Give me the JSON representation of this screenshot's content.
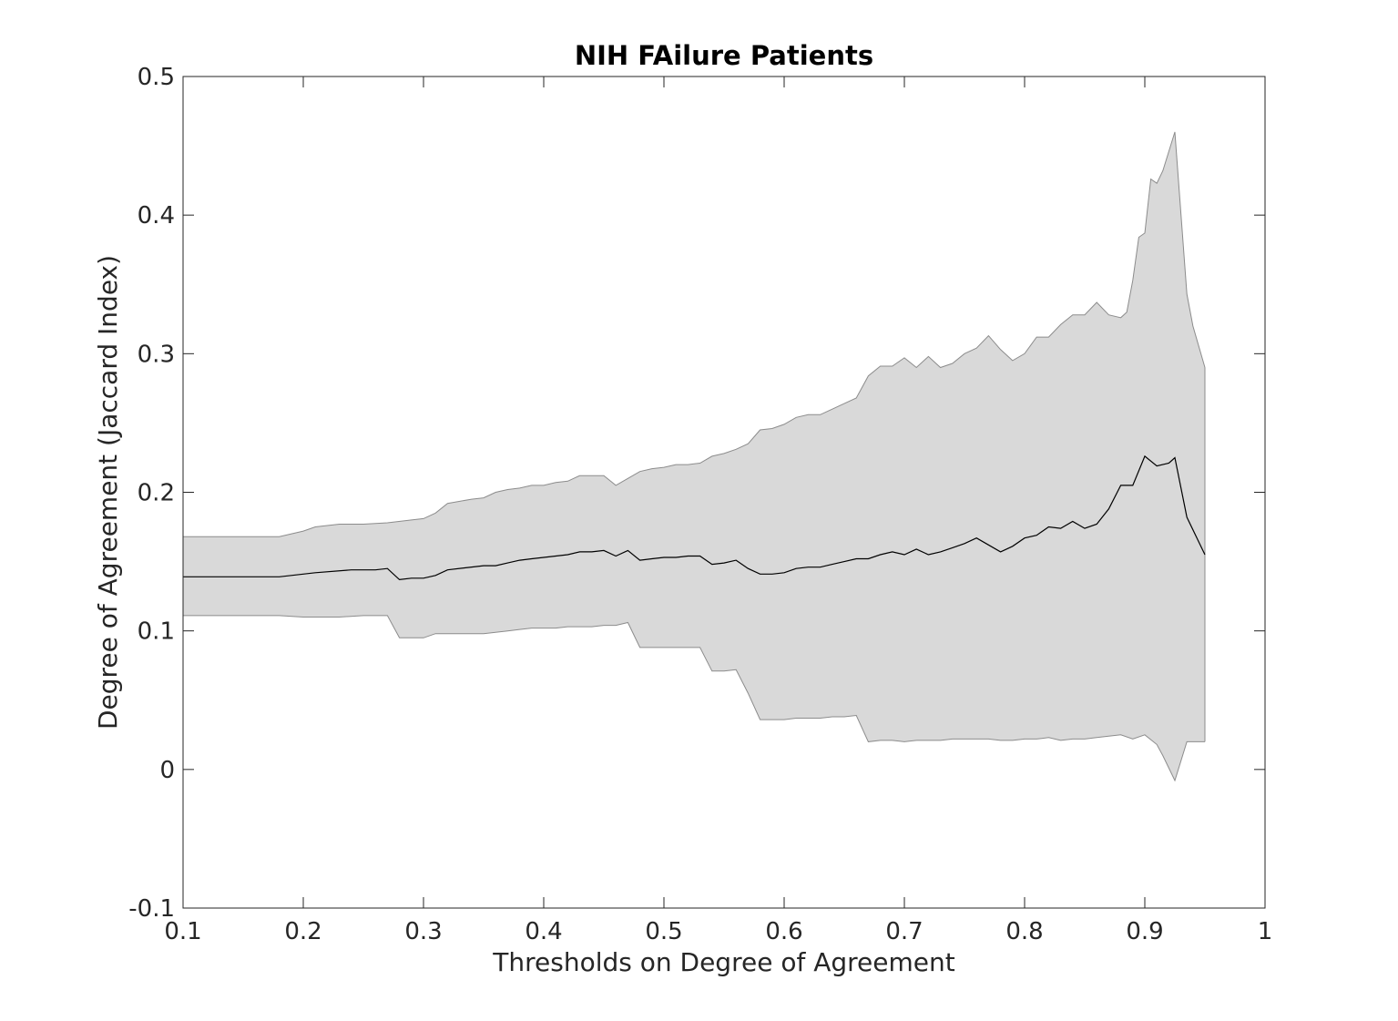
{
  "chart_data": {
    "type": "area",
    "title": "NIH FAilure Patients",
    "xlabel": "Thresholds on Degree of Agreement",
    "ylabel": "Degree of Agreement (Jaccard Index)",
    "xlim": [
      0.1,
      1
    ],
    "ylim": [
      -0.1,
      0.5
    ],
    "x_ticks": [
      "0.1",
      "0.2",
      "0.3",
      "0.4",
      "0.5",
      "0.6",
      "0.7",
      "0.8",
      "0.9",
      "1"
    ],
    "y_ticks": [
      "-0.1",
      "0",
      "0.1",
      "0.2",
      "0.3",
      "0.4",
      "0.5"
    ],
    "grid": false,
    "legend": "none",
    "colors": {
      "band_fill": "#d9d9d9",
      "band_edge": "#8c8c8c",
      "mean_line": "#000000"
    },
    "series": [
      {
        "role": "mean",
        "points": [
          [
            0.1,
            0.139
          ],
          [
            0.18,
            0.139
          ],
          [
            0.2,
            0.141
          ],
          [
            0.21,
            0.142
          ],
          [
            0.24,
            0.144
          ],
          [
            0.26,
            0.144
          ],
          [
            0.27,
            0.145
          ],
          [
            0.28,
            0.137
          ],
          [
            0.29,
            0.138
          ],
          [
            0.3,
            0.138
          ],
          [
            0.31,
            0.14
          ],
          [
            0.32,
            0.144
          ],
          [
            0.35,
            0.147
          ],
          [
            0.36,
            0.147
          ],
          [
            0.37,
            0.149
          ],
          [
            0.38,
            0.151
          ],
          [
            0.39,
            0.152
          ],
          [
            0.4,
            0.153
          ],
          [
            0.41,
            0.154
          ],
          [
            0.42,
            0.155
          ],
          [
            0.43,
            0.157
          ],
          [
            0.44,
            0.157
          ],
          [
            0.45,
            0.158
          ],
          [
            0.46,
            0.154
          ],
          [
            0.47,
            0.158
          ],
          [
            0.48,
            0.151
          ],
          [
            0.49,
            0.152
          ],
          [
            0.5,
            0.153
          ],
          [
            0.51,
            0.153
          ],
          [
            0.52,
            0.154
          ],
          [
            0.53,
            0.154
          ],
          [
            0.54,
            0.148
          ],
          [
            0.55,
            0.149
          ],
          [
            0.56,
            0.151
          ],
          [
            0.57,
            0.145
          ],
          [
            0.58,
            0.141
          ],
          [
            0.59,
            0.141
          ],
          [
            0.6,
            0.142
          ],
          [
            0.61,
            0.145
          ],
          [
            0.62,
            0.146
          ],
          [
            0.63,
            0.146
          ],
          [
            0.64,
            0.148
          ],
          [
            0.65,
            0.15
          ],
          [
            0.66,
            0.152
          ],
          [
            0.67,
            0.152
          ],
          [
            0.68,
            0.155
          ],
          [
            0.69,
            0.157
          ],
          [
            0.7,
            0.155
          ],
          [
            0.71,
            0.159
          ],
          [
            0.72,
            0.155
          ],
          [
            0.73,
            0.157
          ],
          [
            0.74,
            0.16
          ],
          [
            0.75,
            0.163
          ],
          [
            0.76,
            0.167
          ],
          [
            0.77,
            0.162
          ],
          [
            0.78,
            0.157
          ],
          [
            0.79,
            0.161
          ],
          [
            0.8,
            0.167
          ],
          [
            0.81,
            0.169
          ],
          [
            0.82,
            0.175
          ],
          [
            0.83,
            0.174
          ],
          [
            0.84,
            0.179
          ],
          [
            0.85,
            0.174
          ],
          [
            0.86,
            0.177
          ],
          [
            0.87,
            0.188
          ],
          [
            0.88,
            0.205
          ],
          [
            0.89,
            0.205
          ],
          [
            0.9,
            0.226
          ],
          [
            0.91,
            0.219
          ],
          [
            0.92,
            0.221
          ],
          [
            0.925,
            0.225
          ],
          [
            0.935,
            0.182
          ],
          [
            0.95,
            0.155
          ]
        ]
      },
      {
        "role": "upper",
        "points": [
          [
            0.1,
            0.168
          ],
          [
            0.18,
            0.168
          ],
          [
            0.2,
            0.172
          ],
          [
            0.21,
            0.175
          ],
          [
            0.23,
            0.177
          ],
          [
            0.25,
            0.177
          ],
          [
            0.27,
            0.178
          ],
          [
            0.29,
            0.18
          ],
          [
            0.3,
            0.181
          ],
          [
            0.31,
            0.185
          ],
          [
            0.32,
            0.192
          ],
          [
            0.34,
            0.195
          ],
          [
            0.35,
            0.196
          ],
          [
            0.36,
            0.2
          ],
          [
            0.37,
            0.202
          ],
          [
            0.38,
            0.203
          ],
          [
            0.39,
            0.205
          ],
          [
            0.4,
            0.205
          ],
          [
            0.41,
            0.207
          ],
          [
            0.42,
            0.208
          ],
          [
            0.43,
            0.212
          ],
          [
            0.44,
            0.212
          ],
          [
            0.45,
            0.212
          ],
          [
            0.46,
            0.205
          ],
          [
            0.47,
            0.21
          ],
          [
            0.48,
            0.215
          ],
          [
            0.49,
            0.217
          ],
          [
            0.5,
            0.218
          ],
          [
            0.51,
            0.22
          ],
          [
            0.52,
            0.22
          ],
          [
            0.53,
            0.221
          ],
          [
            0.54,
            0.226
          ],
          [
            0.55,
            0.228
          ],
          [
            0.56,
            0.231
          ],
          [
            0.57,
            0.235
          ],
          [
            0.58,
            0.245
          ],
          [
            0.59,
            0.246
          ],
          [
            0.6,
            0.249
          ],
          [
            0.61,
            0.254
          ],
          [
            0.62,
            0.256
          ],
          [
            0.63,
            0.256
          ],
          [
            0.64,
            0.26
          ],
          [
            0.65,
            0.264
          ],
          [
            0.66,
            0.268
          ],
          [
            0.67,
            0.284
          ],
          [
            0.68,
            0.291
          ],
          [
            0.69,
            0.291
          ],
          [
            0.7,
            0.297
          ],
          [
            0.71,
            0.29
          ],
          [
            0.72,
            0.298
          ],
          [
            0.73,
            0.29
          ],
          [
            0.74,
            0.293
          ],
          [
            0.75,
            0.3
          ],
          [
            0.76,
            0.304
          ],
          [
            0.77,
            0.313
          ],
          [
            0.78,
            0.303
          ],
          [
            0.79,
            0.295
          ],
          [
            0.8,
            0.3
          ],
          [
            0.81,
            0.312
          ],
          [
            0.82,
            0.312
          ],
          [
            0.83,
            0.321
          ],
          [
            0.84,
            0.328
          ],
          [
            0.85,
            0.328
          ],
          [
            0.86,
            0.337
          ],
          [
            0.87,
            0.328
          ],
          [
            0.88,
            0.326
          ],
          [
            0.885,
            0.33
          ],
          [
            0.89,
            0.353
          ],
          [
            0.895,
            0.384
          ],
          [
            0.9,
            0.387
          ],
          [
            0.905,
            0.426
          ],
          [
            0.91,
            0.423
          ],
          [
            0.915,
            0.432
          ],
          [
            0.925,
            0.46
          ],
          [
            0.935,
            0.343
          ],
          [
            0.94,
            0.32
          ],
          [
            0.95,
            0.29
          ]
        ]
      },
      {
        "role": "lower",
        "points": [
          [
            0.1,
            0.111
          ],
          [
            0.18,
            0.111
          ],
          [
            0.2,
            0.11
          ],
          [
            0.21,
            0.11
          ],
          [
            0.23,
            0.11
          ],
          [
            0.25,
            0.111
          ],
          [
            0.27,
            0.111
          ],
          [
            0.28,
            0.095
          ],
          [
            0.29,
            0.095
          ],
          [
            0.3,
            0.095
          ],
          [
            0.31,
            0.098
          ],
          [
            0.32,
            0.098
          ],
          [
            0.35,
            0.098
          ],
          [
            0.36,
            0.099
          ],
          [
            0.37,
            0.1
          ],
          [
            0.38,
            0.101
          ],
          [
            0.39,
            0.102
          ],
          [
            0.4,
            0.102
          ],
          [
            0.41,
            0.102
          ],
          [
            0.42,
            0.103
          ],
          [
            0.43,
            0.103
          ],
          [
            0.44,
            0.103
          ],
          [
            0.45,
            0.104
          ],
          [
            0.46,
            0.104
          ],
          [
            0.47,
            0.106
          ],
          [
            0.48,
            0.088
          ],
          [
            0.5,
            0.088
          ],
          [
            0.51,
            0.088
          ],
          [
            0.52,
            0.088
          ],
          [
            0.53,
            0.088
          ],
          [
            0.54,
            0.071
          ],
          [
            0.55,
            0.071
          ],
          [
            0.56,
            0.072
          ],
          [
            0.57,
            0.055
          ],
          [
            0.58,
            0.036
          ],
          [
            0.59,
            0.036
          ],
          [
            0.6,
            0.036
          ],
          [
            0.61,
            0.037
          ],
          [
            0.62,
            0.037
          ],
          [
            0.63,
            0.037
          ],
          [
            0.64,
            0.038
          ],
          [
            0.65,
            0.038
          ],
          [
            0.66,
            0.039
          ],
          [
            0.67,
            0.02
          ],
          [
            0.68,
            0.021
          ],
          [
            0.69,
            0.021
          ],
          [
            0.7,
            0.02
          ],
          [
            0.71,
            0.021
          ],
          [
            0.72,
            0.021
          ],
          [
            0.73,
            0.021
          ],
          [
            0.74,
            0.022
          ],
          [
            0.75,
            0.022
          ],
          [
            0.76,
            0.022
          ],
          [
            0.77,
            0.022
          ],
          [
            0.78,
            0.021
          ],
          [
            0.79,
            0.021
          ],
          [
            0.8,
            0.022
          ],
          [
            0.81,
            0.022
          ],
          [
            0.82,
            0.023
          ],
          [
            0.83,
            0.021
          ],
          [
            0.84,
            0.022
          ],
          [
            0.85,
            0.022
          ],
          [
            0.86,
            0.023
          ],
          [
            0.87,
            0.024
          ],
          [
            0.88,
            0.025
          ],
          [
            0.89,
            0.022
          ],
          [
            0.9,
            0.025
          ],
          [
            0.91,
            0.018
          ],
          [
            0.915,
            0.01
          ],
          [
            0.925,
            -0.008
          ],
          [
            0.935,
            0.02
          ],
          [
            0.95,
            0.02
          ]
        ]
      }
    ]
  }
}
